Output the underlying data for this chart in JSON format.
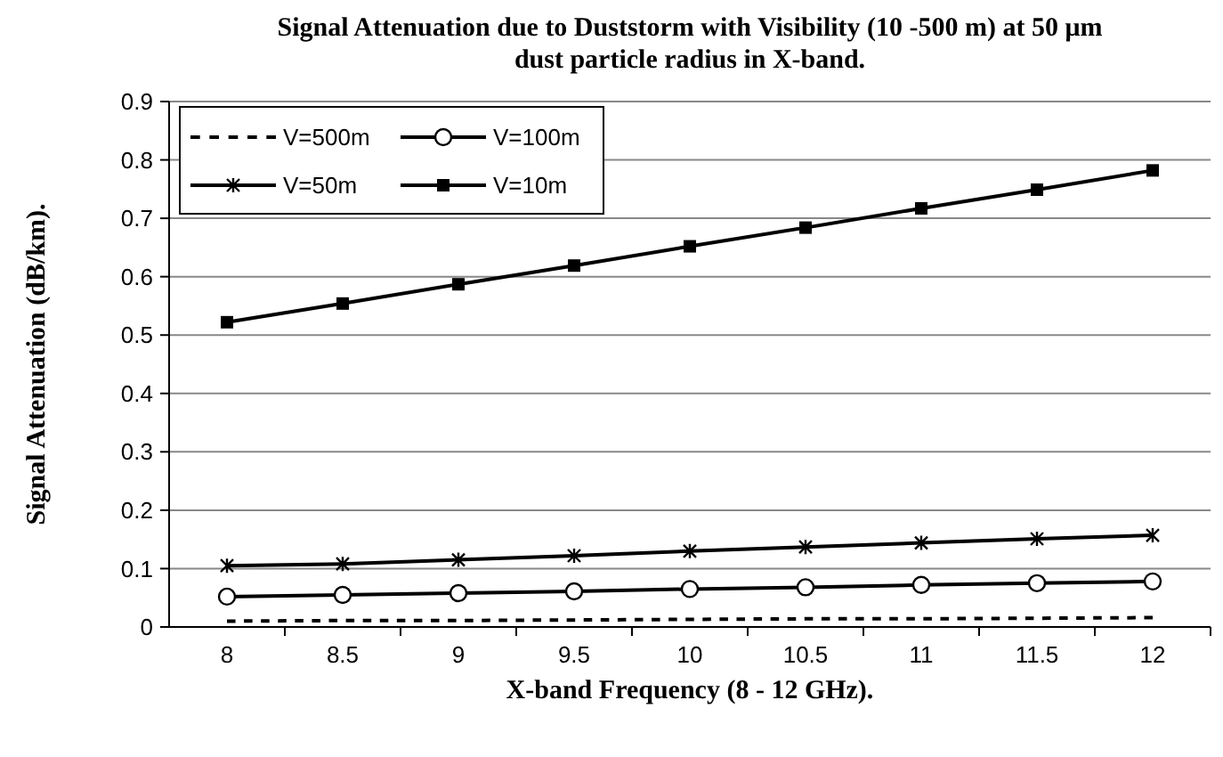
{
  "chart_data": {
    "type": "line",
    "title": "Signal Attenuation due to Duststorm with Visibility (10 -500 m) at 50 μm dust particle radius in X-band.",
    "xlabel": "X-band Frequency (8 - 12 GHz).",
    "ylabel": "Signal Attenuation (dB/km).",
    "categories": [
      "8",
      "8.5",
      "9",
      "9.5",
      "10",
      "10.5",
      "11",
      "11.5",
      "12"
    ],
    "series": [
      {
        "name": "V=500m",
        "color": "#000000",
        "line_style": "dashed",
        "marker": "none",
        "values": [
          0.01,
          0.011,
          0.011,
          0.012,
          0.013,
          0.014,
          0.014,
          0.015,
          0.016
        ]
      },
      {
        "name": "V=100m",
        "color": "#000000",
        "line_style": "solid",
        "marker": "circle",
        "values": [
          0.052,
          0.055,
          0.058,
          0.061,
          0.065,
          0.068,
          0.072,
          0.075,
          0.078
        ]
      },
      {
        "name": "V=50m",
        "color": "#000000",
        "line_style": "solid",
        "marker": "cross",
        "values": [
          0.105,
          0.108,
          0.115,
          0.122,
          0.13,
          0.137,
          0.144,
          0.151,
          0.157
        ]
      },
      {
        "name": "V=10m",
        "color": "#000000",
        "line_style": "solid",
        "marker": "square",
        "values": [
          0.522,
          0.554,
          0.587,
          0.619,
          0.652,
          0.684,
          0.717,
          0.749,
          0.782
        ]
      }
    ],
    "ylim": [
      0,
      0.9
    ],
    "yticks": [
      0,
      0.1,
      0.2,
      0.3,
      0.4,
      0.5,
      0.6,
      0.7,
      0.8,
      0.9
    ],
    "grid": "y",
    "legend": "top left"
  }
}
